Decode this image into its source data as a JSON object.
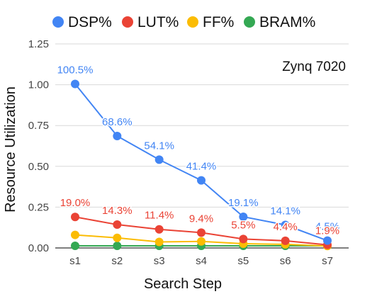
{
  "chart_data": {
    "type": "line",
    "annotation": "Zynq 7020",
    "xlabel": "Search Step",
    "ylabel": "Resource Utilization",
    "categories": [
      "s1",
      "s2",
      "s3",
      "s4",
      "s5",
      "s6",
      "s7"
    ],
    "ylim": [
      0,
      1.25
    ],
    "yticks": [
      "0.00",
      "0.25",
      "0.50",
      "0.75",
      "1.00",
      "1.25"
    ],
    "grid": true,
    "legend_position": "top",
    "series": [
      {
        "name": "DSP%",
        "color": "#4285F4",
        "values": [
          1.005,
          0.686,
          0.541,
          0.414,
          0.191,
          0.141,
          0.045
        ],
        "labels": [
          "100.5%",
          "68.6%",
          "54.1%",
          "41.4%",
          "19.1%",
          "14.1%",
          "4.5%"
        ]
      },
      {
        "name": "LUT%",
        "color": "#EA4335",
        "values": [
          0.19,
          0.143,
          0.114,
          0.094,
          0.055,
          0.044,
          0.019
        ],
        "labels": [
          "19.0%",
          "14.3%",
          "11.4%",
          "9.4%",
          "5.5%",
          "4.4%",
          "1.9%"
        ]
      },
      {
        "name": "FF%",
        "color": "#FBBC04",
        "values": [
          0.08,
          0.062,
          0.037,
          0.04,
          0.026,
          0.022,
          0.012
        ]
      },
      {
        "name": "BRAM%",
        "color": "#34A853",
        "values": [
          0.013,
          0.013,
          0.013,
          0.013,
          0.013,
          0.013,
          0.013
        ]
      }
    ]
  }
}
